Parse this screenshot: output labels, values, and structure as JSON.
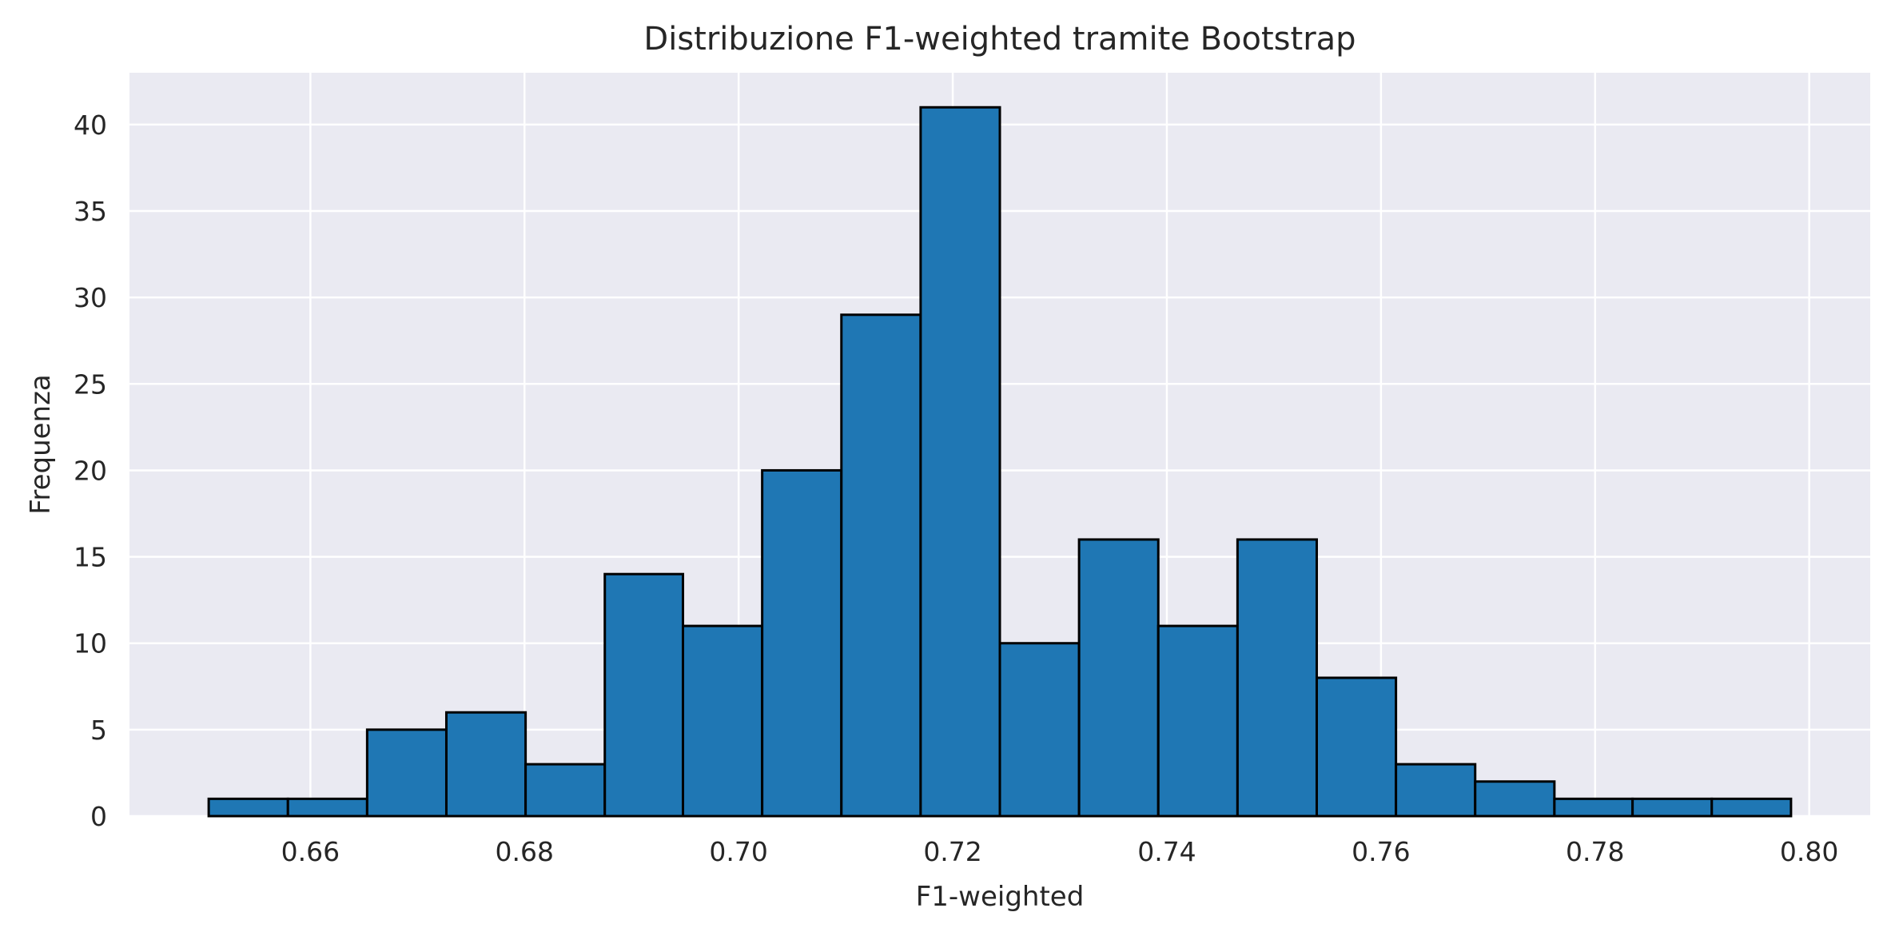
{
  "chart_data": {
    "type": "bar",
    "title": "Distribuzione F1-weighted tramite Bootstrap",
    "xlabel": "F1-weighted",
    "ylabel": "Frequenza",
    "bin_edges": [
      0.6505,
      0.6579,
      0.6653,
      0.6727,
      0.6801,
      0.6875,
      0.6948,
      0.7022,
      0.7096,
      0.717,
      0.7244,
      0.7318,
      0.7392,
      0.7466,
      0.754,
      0.7614,
      0.7688,
      0.7762,
      0.7835,
      0.7909,
      0.7983
    ],
    "values": [
      1,
      1,
      5,
      6,
      3,
      14,
      11,
      20,
      29,
      41,
      10,
      16,
      11,
      16,
      8,
      3,
      2,
      1,
      1,
      1
    ],
    "xlim": [
      0.6431,
      0.8057
    ],
    "ylim": [
      0,
      43
    ],
    "xticks": [
      0.66,
      0.68,
      0.7,
      0.72,
      0.74,
      0.76,
      0.78,
      0.8
    ],
    "xtick_labels": [
      "0.66",
      "0.68",
      "0.70",
      "0.72",
      "0.74",
      "0.76",
      "0.78",
      "0.80"
    ],
    "yticks": [
      0,
      5,
      10,
      15,
      20,
      25,
      30,
      35,
      40
    ],
    "ytick_labels": [
      "0",
      "5",
      "10",
      "15",
      "20",
      "25",
      "30",
      "35",
      "40"
    ],
    "grid": true,
    "colors": {
      "bar": "#1f77b4",
      "edge": "#000000",
      "plot_bg": "#eaeaf2",
      "grid": "#ffffff"
    }
  }
}
